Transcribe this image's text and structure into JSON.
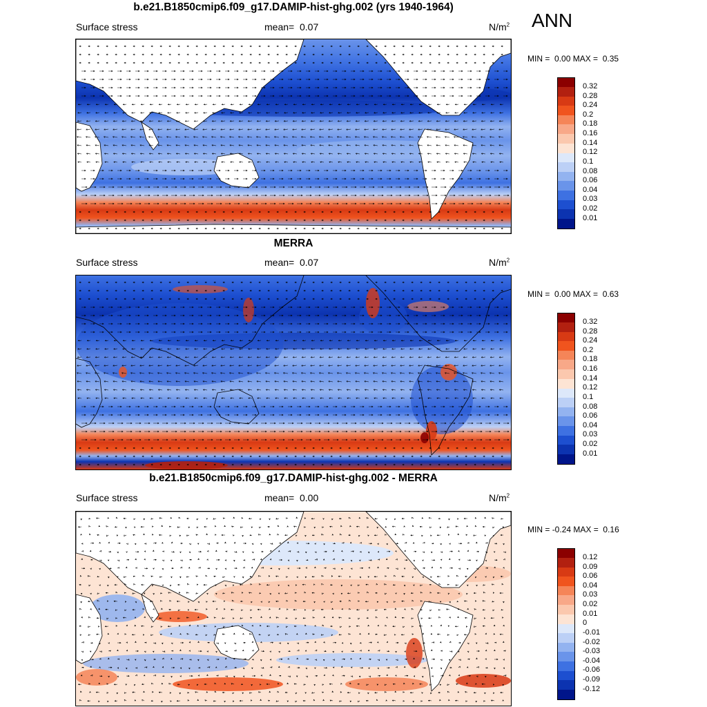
{
  "season": "ANN",
  "chart_data": [
    {
      "type": "heatmap",
      "title": "b.e21.B1850cmip6.f09_g17.DAMIP-hist-ghg.002 (yrs 1940-1964)",
      "variable": "Surface stress",
      "mean_label": "mean=",
      "mean": "0.07",
      "units": "N/m",
      "units_exp": "2",
      "min_label": "MIN =",
      "min": "0.00",
      "max_label": "MAX =",
      "max": "0.35",
      "colorbar_levels": [
        "0.32",
        "0.28",
        "0.24",
        "0.2",
        "0.18",
        "0.16",
        "0.14",
        "0.12",
        "0.1",
        "0.08",
        "0.06",
        "0.04",
        "0.03",
        "0.02",
        "0.01"
      ],
      "colorbar_colors": [
        "#8b0000",
        "#b22010",
        "#d83a14",
        "#f0541e",
        "#f58558",
        "#f8a888",
        "#fbc8ae",
        "#fde4d4",
        "#dde8fa",
        "#bcd0f6",
        "#93b3f0",
        "#6a94ea",
        "#3e71e2",
        "#1d4fd0",
        "#0c33b0",
        "#00158a"
      ],
      "colors_note": "low winds deep blue, strong Southern Ocean westerlies red"
    },
    {
      "type": "heatmap",
      "title": "MERRA",
      "variable": "Surface stress",
      "mean_label": "mean=",
      "mean": "0.07",
      "units": "N/m",
      "units_exp": "2",
      "min_label": "MIN =",
      "min": "0.00",
      "max_label": "MAX =",
      "max": "0.63",
      "colorbar_levels": [
        "0.32",
        "0.28",
        "0.24",
        "0.2",
        "0.18",
        "0.16",
        "0.14",
        "0.12",
        "0.1",
        "0.08",
        "0.06",
        "0.04",
        "0.03",
        "0.02",
        "0.01"
      ],
      "colorbar_colors": [
        "#8b0000",
        "#b22010",
        "#d83a14",
        "#f0541e",
        "#f58558",
        "#f8a888",
        "#fbc8ae",
        "#fde4d4",
        "#dde8fa",
        "#bcd0f6",
        "#93b3f0",
        "#6a94ea",
        "#3e71e2",
        "#1d4fd0",
        "#0c33b0",
        "#00158a"
      ]
    },
    {
      "type": "heatmap",
      "title": "b.e21.B1850cmip6.f09_g17.DAMIP-hist-ghg.002 - MERRA",
      "variable": "Surface stress",
      "mean_label": "mean=",
      "mean": "0.00",
      "units": "N/m",
      "units_exp": "2",
      "min_label": "MIN =",
      "min": "-0.24",
      "max_label": "MAX =",
      "max": "0.16",
      "colorbar_levels": [
        "0.12",
        "0.09",
        "0.06",
        "0.04",
        "0.03",
        "0.02",
        "0.01",
        "0",
        "-0.01",
        "-0.02",
        "-0.03",
        "-0.04",
        "-0.06",
        "-0.09",
        "-0.12"
      ],
      "colorbar_colors": [
        "#8b0000",
        "#b22010",
        "#d83a14",
        "#f0541e",
        "#f58558",
        "#f8a888",
        "#fbc8ae",
        "#fde4d4",
        "#dde8fa",
        "#bcd0f6",
        "#93b3f0",
        "#6a94ea",
        "#3e71e2",
        "#1d4fd0",
        "#0c33b0",
        "#00158a"
      ]
    }
  ]
}
